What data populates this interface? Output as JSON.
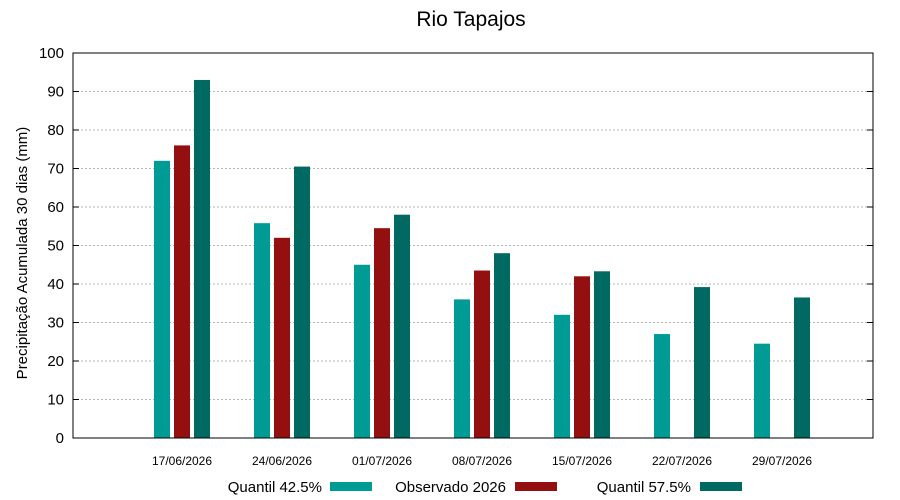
{
  "chart_data": {
    "type": "bar",
    "title": "Rio Tapajos",
    "xlabel": "",
    "ylabel": "Precipitação Acumulada 30 dias (mm)",
    "ylim": [
      0,
      100
    ],
    "yticks": [
      "0",
      "10",
      "20",
      "30",
      "40",
      "50",
      "60",
      "70",
      "80",
      "90",
      "100"
    ],
    "grid": true,
    "legend_position": "bottom",
    "categories": [
      "17/06/2026",
      "24/06/2026",
      "01/07/2026",
      "08/07/2026",
      "15/07/2026",
      "22/07/2026",
      "29/07/2026"
    ],
    "series": [
      {
        "name": "Quantil 42.5%",
        "color": "#009b95",
        "values": [
          72,
          55.8,
          45,
          36,
          32,
          27,
          24.5
        ]
      },
      {
        "name": "Observado 2026",
        "color": "#940f0f",
        "values": [
          76,
          52,
          54.5,
          43.5,
          42,
          null,
          null
        ]
      },
      {
        "name": "Quantil 57.5%",
        "color": "#006a62",
        "values": [
          93,
          70.5,
          58,
          48,
          43.3,
          39.2,
          36.5
        ]
      }
    ]
  }
}
